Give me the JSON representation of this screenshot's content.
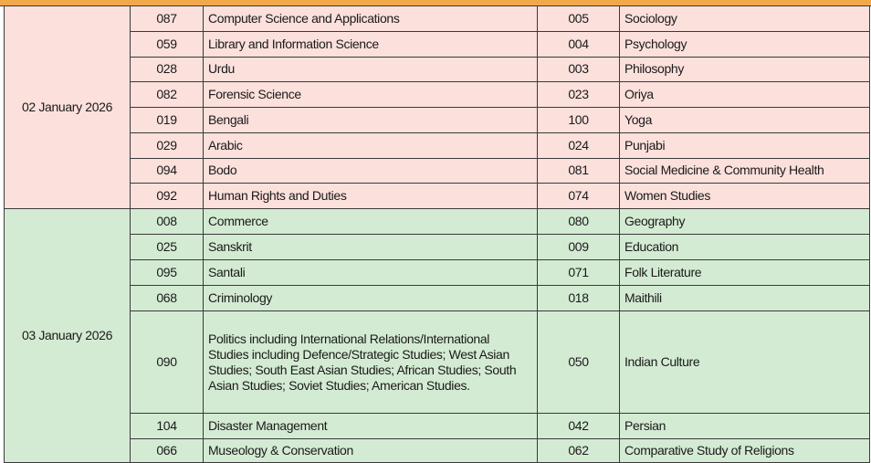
{
  "colors": {
    "header_band": "#f2a94a",
    "day1_bg": "#fbe0dc",
    "day2_bg": "#d4ebd3"
  },
  "groups": [
    {
      "date": "02 January 2026",
      "theme": "pink",
      "rows": [
        {
          "code1": "087",
          "subject1": "Computer Science and Applications",
          "code2": "005",
          "subject2": "Sociology"
        },
        {
          "code1": "059",
          "subject1": "Library and Information Science",
          "code2": "004",
          "subject2": "Psychology"
        },
        {
          "code1": "028",
          "subject1": "Urdu",
          "code2": "003",
          "subject2": "Philosophy"
        },
        {
          "code1": "082",
          "subject1": "Forensic Science",
          "code2": "023",
          "subject2": "Oriya"
        },
        {
          "code1": "019",
          "subject1": "Bengali",
          "code2": "100",
          "subject2": "Yoga"
        },
        {
          "code1": "029",
          "subject1": "Arabic",
          "code2": "024",
          "subject2": "Punjabi"
        },
        {
          "code1": "094",
          "subject1": "Bodo",
          "code2": "081",
          "subject2": "Social Medicine & Community Health"
        },
        {
          "code1": "092",
          "subject1": "Human Rights and Duties",
          "code2": "074",
          "subject2": "Women Studies"
        }
      ]
    },
    {
      "date": "03 January 2026",
      "theme": "green",
      "rows": [
        {
          "code1": "008",
          "subject1": "Commerce",
          "code2": "080",
          "subject2": "Geography"
        },
        {
          "code1": "025",
          "subject1": "Sanskrit",
          "code2": "009",
          "subject2": "Education"
        },
        {
          "code1": "095",
          "subject1": "Santali",
          "code2": "071",
          "subject2": "Folk Literature"
        },
        {
          "code1": "068",
          "subject1": "Criminology",
          "code2": "018",
          "subject2": "Maithili"
        },
        {
          "code1": "090",
          "subject1": "Politics including International Relations/International Studies including Defence/Strategic Studies; West Asian Studies; South East Asian Studies; African Studies; South Asian Studies; Soviet Studies; American Studies.",
          "code2": "050",
          "subject2": "Indian Culture"
        },
        {
          "code1": "104",
          "subject1": "Disaster Management",
          "code2": "042",
          "subject2": "Persian"
        },
        {
          "code1": "066",
          "subject1": "Museology & Conservation",
          "code2": "062",
          "subject2": "Comparative Study of Religions"
        }
      ]
    }
  ]
}
